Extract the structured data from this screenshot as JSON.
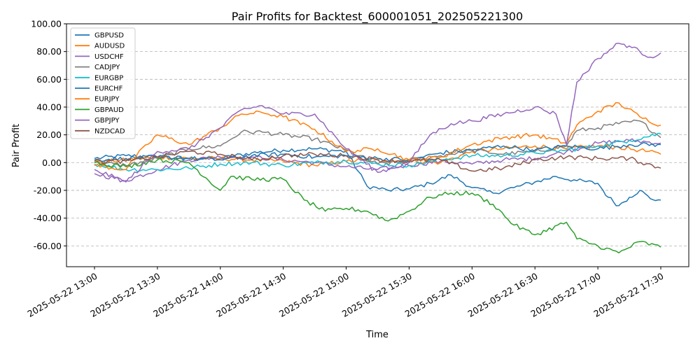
{
  "chart_data": {
    "type": "line",
    "title": "Pair Profits for Backtest_600001051_202505221300",
    "xlabel": "Time",
    "ylabel": "Pair Profit",
    "ylim": [
      -75,
      100
    ],
    "yticks": [
      -60,
      -40,
      -20,
      0,
      20,
      40,
      60,
      80,
      100
    ],
    "ytick_labels": [
      "-60.00",
      "-40.00",
      "-20.00",
      "0.00",
      "20.00",
      "40.00",
      "60.00",
      "80.00",
      "100.00"
    ],
    "x_start": "2025-05-22 13:00",
    "x_end": "2025-05-22 17:30",
    "xticks": [
      "2025-05-22 13:00",
      "2025-05-22 13:30",
      "2025-05-22 14:00",
      "2025-05-22 14:30",
      "2025-05-22 15:00",
      "2025-05-22 15:30",
      "2025-05-22 16:00",
      "2025-05-22 16:30",
      "2025-05-22 17:00",
      "2025-05-22 17:30"
    ],
    "grid": "y-dashed",
    "legend_position": "top-left",
    "series": [
      {
        "name": "GBPUSD",
        "color": "#1f77b4",
        "x": [
          "13:00",
          "13:15",
          "13:30",
          "13:45",
          "14:00",
          "14:15",
          "14:30",
          "14:45",
          "15:00",
          "15:10",
          "15:20",
          "15:30",
          "15:40",
          "15:50",
          "16:00",
          "16:10",
          "16:20",
          "16:30",
          "16:40",
          "16:50",
          "17:00",
          "17:05",
          "17:10",
          "17:15",
          "17:20",
          "17:25",
          "17:30"
        ],
        "values": [
          3,
          5,
          4,
          3,
          3,
          7,
          9,
          10,
          8,
          -17,
          -20,
          -19,
          -15,
          -9,
          -18,
          -22,
          -18,
          -14,
          -10,
          -13,
          -15,
          -25,
          -31,
          -25,
          -20,
          -26,
          -27
        ]
      },
      {
        "name": "AUDUSD",
        "color": "#ff7f0e",
        "x": [
          "13:00",
          "13:15",
          "13:30",
          "13:45",
          "14:00",
          "14:15",
          "14:30",
          "14:45",
          "15:00",
          "15:15",
          "15:30",
          "15:45",
          "16:00",
          "16:15",
          "16:30",
          "16:45",
          "17:00",
          "17:10",
          "17:20",
          "17:30"
        ],
        "values": [
          0,
          2,
          4,
          3,
          3,
          2,
          1,
          -2,
          1,
          2,
          1,
          0,
          8,
          10,
          12,
          10,
          12,
          11,
          9,
          6
        ]
      },
      {
        "name": "USDCHF",
        "color": "#9467bd",
        "x": [
          "13:00",
          "13:15",
          "13:30",
          "13:45",
          "14:00",
          "14:15",
          "14:30",
          "14:45",
          "15:00",
          "15:15",
          "15:30",
          "15:45",
          "16:00",
          "16:15",
          "16:30",
          "16:45",
          "17:00",
          "17:15",
          "17:30"
        ],
        "values": [
          -8,
          -13,
          -5,
          2,
          4,
          4,
          2,
          0,
          -3,
          -5,
          -2,
          1,
          -1,
          2,
          3,
          8,
          14,
          16,
          14
        ]
      },
      {
        "name": "CADJPY",
        "color": "#7f7f7f",
        "x": [
          "13:00",
          "13:15",
          "13:30",
          "13:45",
          "14:00",
          "14:10",
          "14:20",
          "14:30",
          "14:45",
          "15:00",
          "15:15",
          "15:30",
          "15:45",
          "16:00",
          "16:15",
          "16:30",
          "16:45",
          "16:50",
          "17:00",
          "17:10",
          "17:20",
          "17:30"
        ],
        "values": [
          0,
          -2,
          3,
          10,
          12,
          22,
          22,
          20,
          17,
          9,
          -1,
          1,
          5,
          9,
          6,
          8,
          12,
          23,
          25,
          28,
          30,
          18
        ]
      },
      {
        "name": "EURGBP",
        "color": "#17becf",
        "x": [
          "13:00",
          "13:15",
          "13:30",
          "13:45",
          "14:00",
          "14:15",
          "14:30",
          "14:45",
          "15:00",
          "15:15",
          "15:30",
          "15:45",
          "16:00",
          "16:15",
          "16:30",
          "16:45",
          "17:00",
          "17:15",
          "17:30"
        ],
        "values": [
          -1,
          -5,
          -5,
          -4,
          -1,
          0,
          -2,
          0,
          1,
          -1,
          -2,
          2,
          5,
          5,
          7,
          9,
          12,
          16,
          21
        ]
      },
      {
        "name": "EURCHF",
        "color": "#1f77b4",
        "x": [
          "13:00",
          "13:15",
          "13:30",
          "13:45",
          "14:00",
          "14:15",
          "14:30",
          "14:45",
          "15:00",
          "15:15",
          "15:30",
          "15:45",
          "16:00",
          "16:15",
          "16:30",
          "16:45",
          "17:00",
          "17:15",
          "17:30"
        ],
        "values": [
          2,
          3,
          4,
          3,
          2,
          5,
          6,
          4,
          5,
          3,
          2,
          7,
          9,
          12,
          9,
          12,
          10,
          13,
          13
        ]
      },
      {
        "name": "EURJPY",
        "color": "#ff7f0e",
        "x": [
          "13:00",
          "13:15",
          "13:20",
          "13:30",
          "13:45",
          "14:00",
          "14:10",
          "14:20",
          "14:30",
          "14:45",
          "15:00",
          "15:15",
          "15:30",
          "15:45",
          "16:00",
          "16:15",
          "16:30",
          "16:45",
          "16:50",
          "17:00",
          "17:10",
          "17:20",
          "17:30"
        ],
        "values": [
          -2,
          -5,
          5,
          20,
          13,
          25,
          35,
          36,
          33,
          24,
          8,
          10,
          2,
          4,
          13,
          18,
          20,
          14,
          27,
          37,
          43,
          33,
          27
        ]
      },
      {
        "name": "GBPAUD",
        "color": "#2ca02c",
        "x": [
          "13:00",
          "13:15",
          "13:30",
          "13:45",
          "14:00",
          "14:05",
          "14:15",
          "14:30",
          "14:40",
          "14:50",
          "15:00",
          "15:10",
          "15:20",
          "15:30",
          "15:40",
          "15:50",
          "16:00",
          "16:10",
          "16:20",
          "16:30",
          "16:45",
          "16:50",
          "17:00",
          "17:10",
          "17:20",
          "17:30"
        ],
        "values": [
          0,
          -3,
          2,
          0,
          -20,
          -10,
          -12,
          -12,
          -27,
          -35,
          -33,
          -35,
          -42,
          -35,
          -25,
          -22,
          -22,
          -30,
          -45,
          -52,
          -43,
          -55,
          -60,
          -65,
          -57,
          -61
        ]
      },
      {
        "name": "GBPJPY",
        "color": "#9467bd",
        "x": [
          "13:00",
          "13:15",
          "13:30",
          "13:45",
          "14:00",
          "14:10",
          "14:20",
          "14:30",
          "14:45",
          "15:00",
          "15:15",
          "15:30",
          "15:40",
          "15:50",
          "16:00",
          "16:15",
          "16:30",
          "16:40",
          "16:45",
          "16:50",
          "17:00",
          "17:10",
          "17:15",
          "17:20",
          "17:25",
          "17:30"
        ],
        "values": [
          -5,
          -14,
          8,
          10,
          25,
          38,
          41,
          35,
          35,
          10,
          -7,
          0,
          20,
          28,
          30,
          35,
          40,
          35,
          13,
          58,
          75,
          86,
          84,
          80,
          76,
          79
        ]
      },
      {
        "name": "NZDCAD",
        "color": "#8c564b",
        "x": [
          "13:00",
          "13:15",
          "13:30",
          "13:45",
          "14:00",
          "14:15",
          "14:30",
          "14:45",
          "15:00",
          "15:15",
          "15:30",
          "15:45",
          "16:00",
          "16:15",
          "16:30",
          "16:45",
          "17:00",
          "17:15",
          "17:30"
        ],
        "values": [
          1,
          1,
          4,
          8,
          6,
          2,
          5,
          6,
          5,
          2,
          1,
          2,
          -6,
          -4,
          2,
          4,
          3,
          3,
          -4
        ]
      }
    ]
  }
}
